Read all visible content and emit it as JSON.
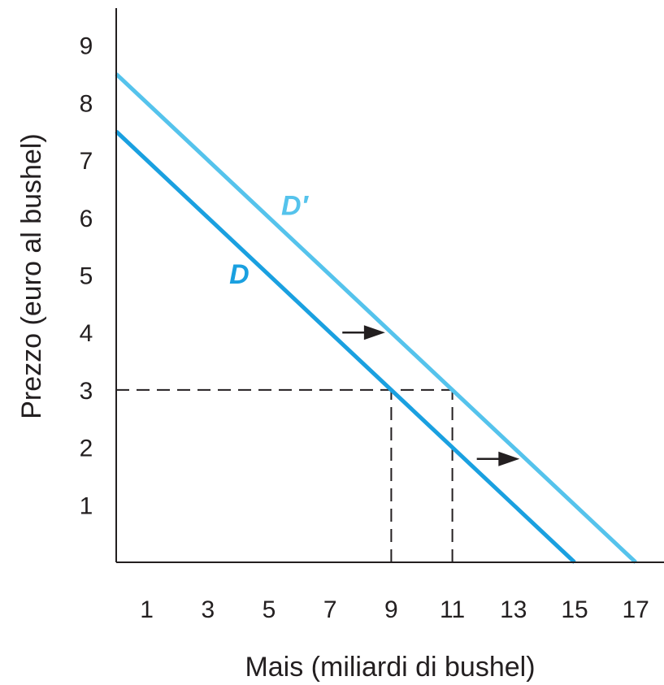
{
  "chart_data": {
    "type": "line",
    "xlabel": "Mais (miliardi di bushel)",
    "ylabel": "Prezzo (euro al bushel)",
    "xlim": [
      0,
      18
    ],
    "ylim": [
      0,
      9.6
    ],
    "x_ticks": [
      "1",
      "3",
      "5",
      "7",
      "9",
      "11",
      "13",
      "15",
      "17"
    ],
    "y_ticks": [
      "1",
      "2",
      "3",
      "4",
      "5",
      "6",
      "7",
      "8",
      "9"
    ],
    "grid": false,
    "series": [
      {
        "name": "D",
        "color": "#1aa0e0",
        "points": [
          [
            0,
            7.5
          ],
          [
            15,
            0
          ]
        ]
      },
      {
        "name": "D′",
        "color": "#55c3ec",
        "points": [
          [
            0,
            8.5
          ],
          [
            17,
            0
          ]
        ]
      }
    ],
    "reference_lines": [
      {
        "points": [
          [
            0,
            3
          ],
          [
            11,
            3
          ]
        ]
      },
      {
        "points": [
          [
            9,
            0
          ],
          [
            9,
            3
          ]
        ]
      },
      {
        "points": [
          [
            11,
            0
          ],
          [
            11,
            3
          ]
        ]
      }
    ],
    "shift_arrows": [
      {
        "from": [
          7.4,
          4
        ],
        "to": [
          8.8,
          4
        ]
      },
      {
        "from": [
          11.8,
          1.8
        ],
        "to": [
          13.2,
          1.8
        ]
      }
    ],
    "colors": {
      "axis": "#231f20",
      "arrow": "#231f20"
    }
  }
}
